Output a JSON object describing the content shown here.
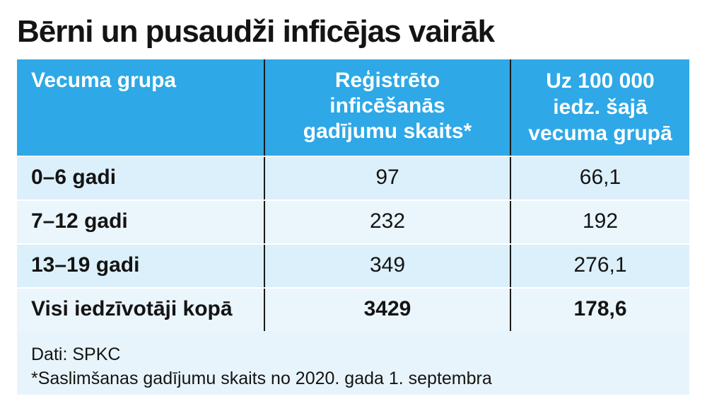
{
  "title": "Bērni un pusaudži inficējas vairāk",
  "chart_data": {
    "type": "table",
    "columns": [
      "Vecuma grupa",
      "Reģistrēto inficēšanās gadījumu skaits*",
      "Uz 100 000 iedz. šajā vecuma grupā"
    ],
    "header_lines": {
      "col1": [
        "Vecuma grupa"
      ],
      "col2": [
        "Reģistrēto",
        "inficēšanās",
        "gadījumu skaits*"
      ],
      "col3": [
        "Uz 100 000",
        "iedz. šajā",
        "vecuma grupā"
      ]
    },
    "rows": [
      {
        "group": "0–6 gadi",
        "cases": "97",
        "per100k": "66,1"
      },
      {
        "group": "7–12 gadi",
        "cases": "232",
        "per100k": "192"
      },
      {
        "group": "13–19 gadi",
        "cases": "349",
        "per100k": "276,1"
      },
      {
        "group": "Visi iedzīvotāji kopā",
        "cases": "3429",
        "per100k": "178,6"
      }
    ]
  },
  "notes": {
    "source": "Dati: SPKC",
    "footnote": "*Saslimšanas gadījumu skaits no 2020. gada 1. septembra"
  },
  "colors": {
    "header": "#2ea8e6",
    "row_shade_a": "#dcf0fb",
    "row_shade_b": "#eaf5fc",
    "divider": "#1a1a1a"
  }
}
